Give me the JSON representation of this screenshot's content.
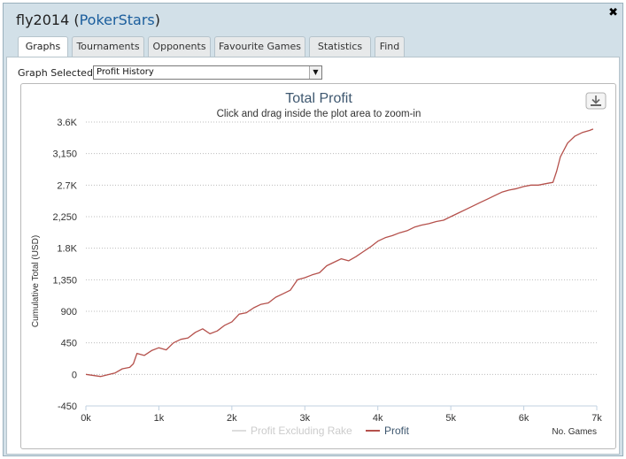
{
  "window": {
    "title_user": "fly2014",
    "title_open": " (",
    "title_site": "PokerStars",
    "title_close": ")",
    "close_glyph": "✖"
  },
  "tabs": [
    {
      "label": "Graphs",
      "active": true
    },
    {
      "label": "Tournaments",
      "active": false
    },
    {
      "label": "Opponents",
      "active": false
    },
    {
      "label": "Favourite Games",
      "active": false
    },
    {
      "label": "Statistics",
      "active": false
    },
    {
      "label": "Find",
      "active": false
    }
  ],
  "graph_select": {
    "label": "Graph Selected:",
    "value": "Profit History"
  },
  "chart_data": {
    "type": "line",
    "title": "Total Profit",
    "subtitle": "Click and drag inside the plot area to zoom-in",
    "ylabel": "Cumulative Total (USD)",
    "xlabel": "No. Games",
    "x_ticks": [
      "0k",
      "1k",
      "2k",
      "3k",
      "4k",
      "5k",
      "6k",
      "7k"
    ],
    "y_ticks": [
      "-450",
      "0",
      "450",
      "900",
      "1,350",
      "1.8K",
      "2,250",
      "2.7K",
      "3,150",
      "3.6K"
    ],
    "xlim": [
      0,
      7000
    ],
    "ylim": [
      -450,
      3600
    ],
    "grid": true,
    "legend_position": "bottom-center",
    "series": [
      {
        "name": "Profit Excluding Rake",
        "color": "#dddddd",
        "x": [],
        "y": []
      },
      {
        "name": "Profit",
        "color": "#b5514c",
        "x": [
          0,
          200,
          400,
          500,
          600,
          650,
          700,
          800,
          900,
          1000,
          1100,
          1200,
          1300,
          1400,
          1500,
          1600,
          1700,
          1800,
          1900,
          2000,
          2100,
          2200,
          2300,
          2400,
          2500,
          2600,
          2700,
          2800,
          2900,
          3000,
          3100,
          3200,
          3300,
          3400,
          3500,
          3600,
          3700,
          3800,
          3900,
          4000,
          4100,
          4200,
          4300,
          4400,
          4500,
          4600,
          4700,
          4800,
          4900,
          5000,
          5100,
          5200,
          5300,
          5400,
          5500,
          5600,
          5700,
          5800,
          5900,
          6000,
          6100,
          6200,
          6300,
          6400,
          6450,
          6500,
          6550,
          6600,
          6700,
          6800,
          6900,
          6950
        ],
        "y": [
          0,
          -30,
          20,
          80,
          100,
          150,
          300,
          270,
          340,
          380,
          350,
          450,
          500,
          520,
          600,
          650,
          580,
          620,
          700,
          750,
          860,
          880,
          950,
          1000,
          1020,
          1100,
          1150,
          1200,
          1350,
          1380,
          1420,
          1450,
          1550,
          1600,
          1650,
          1620,
          1680,
          1750,
          1820,
          1900,
          1950,
          1980,
          2020,
          2050,
          2100,
          2130,
          2150,
          2180,
          2200,
          2250,
          2300,
          2350,
          2400,
          2450,
          2500,
          2550,
          2600,
          2630,
          2650,
          2680,
          2700,
          2700,
          2720,
          2740,
          2900,
          3100,
          3200,
          3300,
          3400,
          3450,
          3480,
          3500
        ]
      }
    ]
  },
  "download_icon_name": "download-icon"
}
